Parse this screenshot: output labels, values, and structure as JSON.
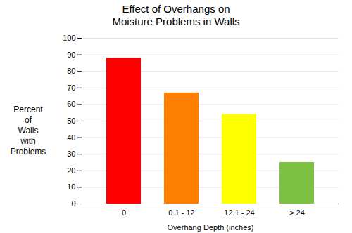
{
  "chart_data": {
    "type": "bar",
    "title": "Effect of Overhangs on\nMoisture Problems in Walls",
    "xlabel": "Overhang Depth (inches)",
    "ylabel": "Percent\nof\nWalls\nwith\nProblems",
    "categories": [
      "0",
      "0.1 - 12",
      "12.1 - 24",
      "> 24"
    ],
    "values": [
      88,
      67,
      54,
      25
    ],
    "colors": [
      "#ff0000",
      "#ff8000",
      "#ffff00",
      "#7dc142"
    ],
    "ylim": [
      0,
      100
    ],
    "yticks": [
      0,
      10,
      20,
      30,
      40,
      50,
      60,
      70,
      80,
      90,
      100
    ],
    "grid": true
  }
}
